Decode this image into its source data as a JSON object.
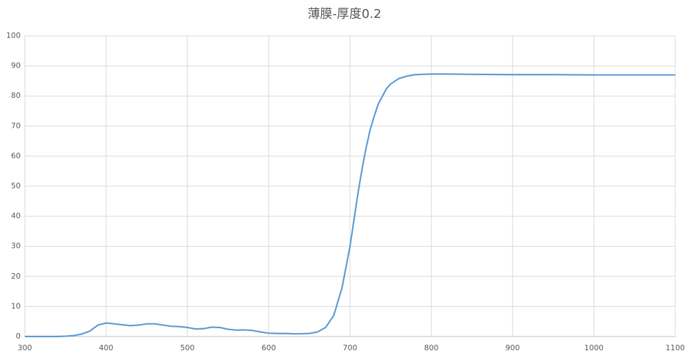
{
  "chart_data": {
    "type": "line",
    "title": "薄膜-厚度0.2",
    "x": [
      300,
      310,
      320,
      330,
      340,
      350,
      360,
      370,
      380,
      390,
      400,
      410,
      420,
      430,
      440,
      450,
      460,
      470,
      480,
      490,
      500,
      510,
      520,
      530,
      540,
      550,
      560,
      570,
      580,
      590,
      600,
      610,
      620,
      630,
      640,
      650,
      660,
      670,
      680,
      690,
      700,
      705,
      710,
      715,
      720,
      725,
      730,
      735,
      740,
      745,
      750,
      760,
      770,
      780,
      790,
      800,
      820,
      850,
      900,
      950,
      1000,
      1050,
      1100
    ],
    "series": [
      {
        "color": "#5b9bd5",
        "values": [
          0,
          0,
          0,
          0,
          0,
          0.1,
          0.3,
          0.8,
          1.8,
          3.8,
          4.5,
          4.2,
          3.9,
          3.6,
          3.8,
          4.2,
          4.2,
          3.8,
          3.4,
          3.3,
          3.0,
          2.5,
          2.6,
          3.1,
          3.0,
          2.4,
          2.1,
          2.2,
          2.0,
          1.5,
          1.1,
          1.0,
          1.0,
          0.9,
          0.9,
          1.0,
          1.5,
          3.0,
          7,
          16,
          30,
          39,
          48,
          56,
          63,
          69,
          73.5,
          77.5,
          80,
          82.5,
          84,
          85.8,
          86.6,
          87.1,
          87.2,
          87.3,
          87.3,
          87.2,
          87.1,
          87.1,
          87.0,
          87.0,
          87.0
        ]
      }
    ],
    "xlim": [
      300,
      1100
    ],
    "xticks": [
      300,
      400,
      500,
      600,
      700,
      800,
      900,
      1000,
      1100
    ],
    "ylim": [
      0,
      100
    ],
    "yticks": [
      0,
      10,
      20,
      30,
      40,
      50,
      60,
      70,
      80,
      90,
      100
    ],
    "grid": true
  }
}
